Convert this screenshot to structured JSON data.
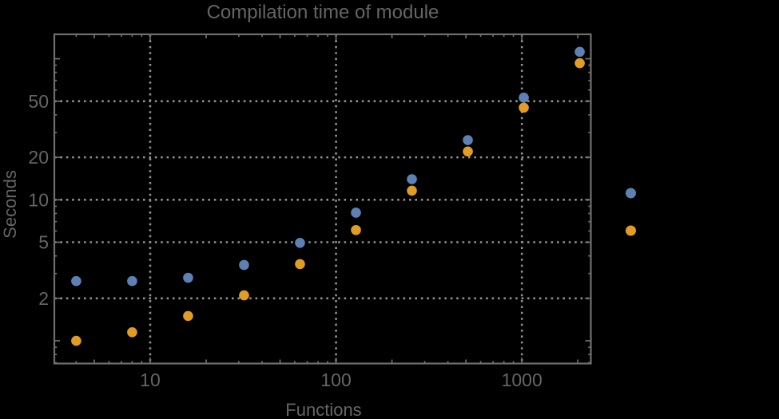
{
  "chart_data": {
    "type": "scatter",
    "title": "Compilation time of module",
    "xlabel": "Functions",
    "ylabel": "Seconds",
    "x_scale": "log",
    "y_scale": "log",
    "xlim": [
      3.05,
      2350
    ],
    "ylim": [
      0.69,
      149
    ],
    "grid": "dotted",
    "x": [
      4,
      8,
      16,
      32,
      64,
      128,
      256,
      512,
      1024,
      2048
    ],
    "series": [
      {
        "name": "blue",
        "color": "#5e81b5",
        "values": [
          2.65,
          2.65,
          2.8,
          3.45,
          4.95,
          8.1,
          14,
          26.5,
          53,
          112
        ]
      },
      {
        "name": "orange",
        "color": "#e19c24",
        "values": [
          1.0,
          1.15,
          1.5,
          2.1,
          3.5,
          6.1,
          11.6,
          22,
          45,
          93
        ]
      }
    ],
    "x_tick_labels": [
      10,
      100,
      1000
    ],
    "y_tick_labels": [
      2,
      5,
      10,
      20,
      50
    ],
    "legend": {
      "position": "right-outside",
      "labels_visible": false
    },
    "colors": {
      "background": "#000000",
      "frame": "#6f6f6f",
      "grid": "#909090",
      "text": "#656565"
    }
  }
}
